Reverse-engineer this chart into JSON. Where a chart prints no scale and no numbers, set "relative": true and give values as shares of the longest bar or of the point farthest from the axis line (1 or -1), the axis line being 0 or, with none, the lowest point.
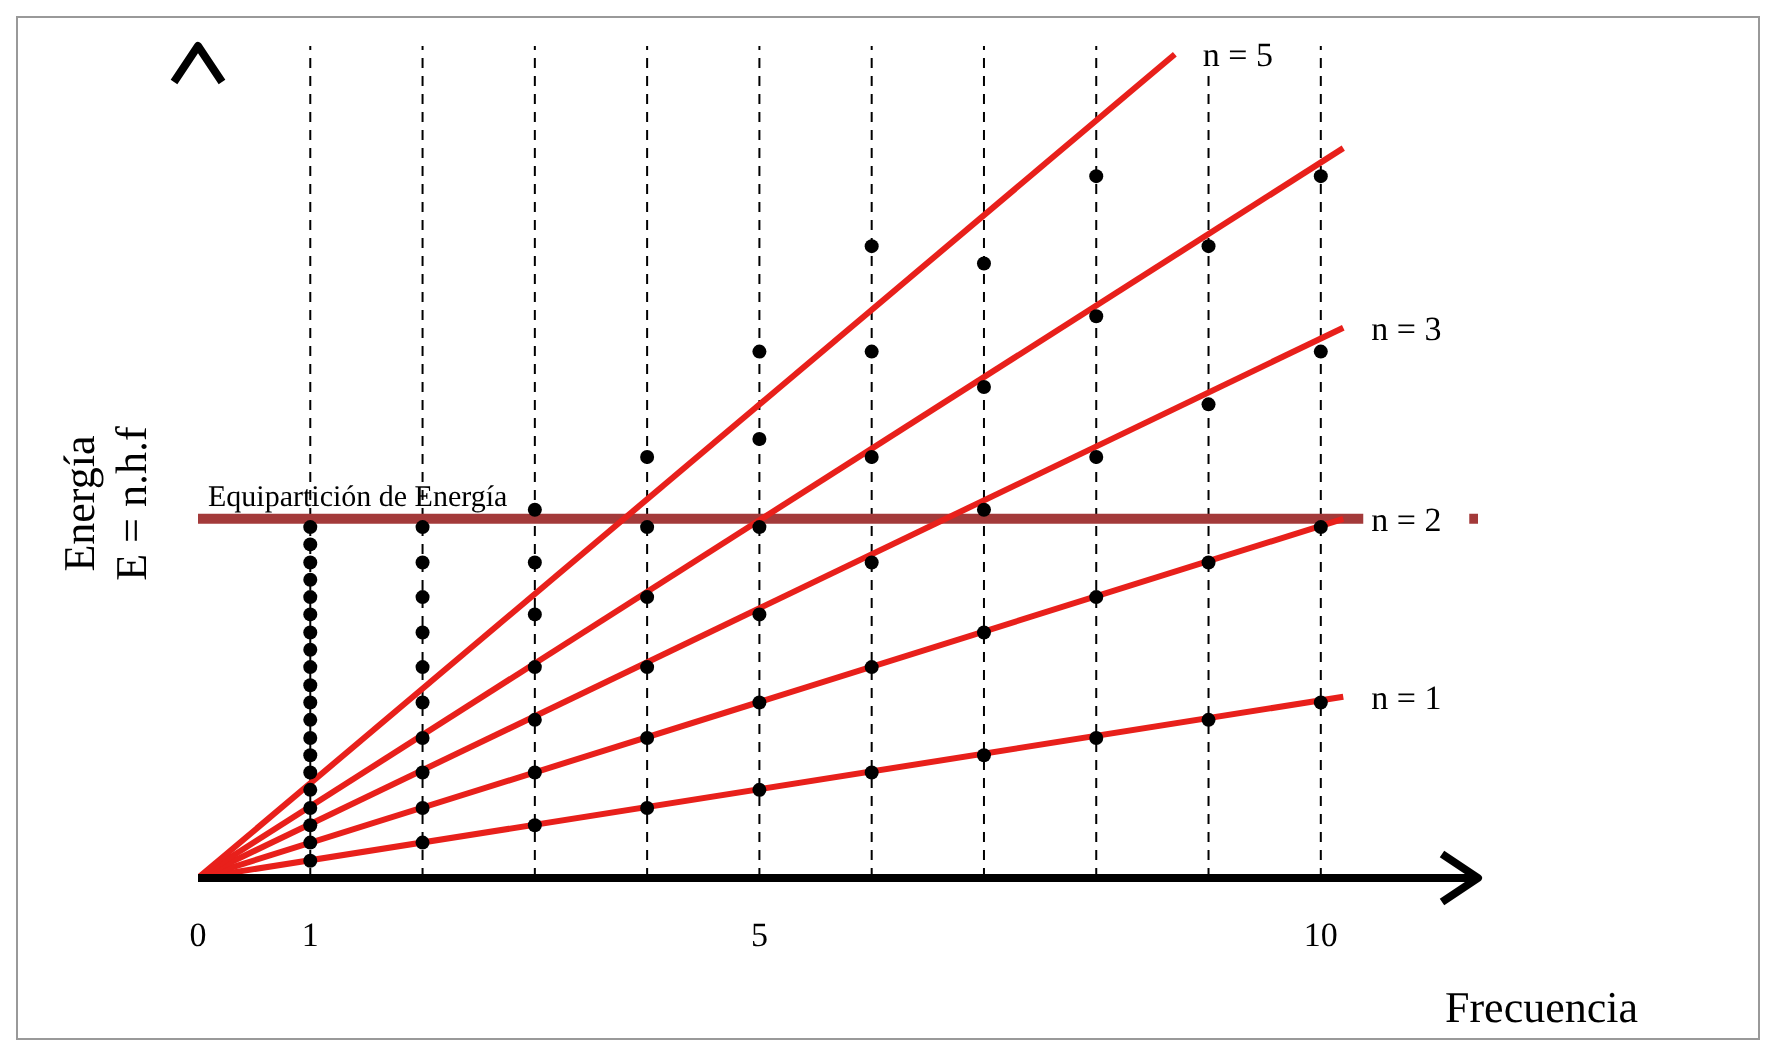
{
  "chart_data": {
    "type": "line",
    "relative": true,
    "xlabel": "Frecuencia",
    "ylabel": "Energía\nE = n.h.f",
    "xlim": [
      0,
      11.4
    ],
    "xticks": [
      0,
      1,
      5,
      10
    ],
    "legend": false,
    "series": [
      {
        "name": "n = 1",
        "color": "#e8201b",
        "x": [
          0,
          10.2
        ],
        "values": [
          0,
          0.22
        ]
      },
      {
        "name": "n = 2",
        "color": "#e8201b",
        "x": [
          0,
          10.2
        ],
        "values": [
          0,
          0.436
        ]
      },
      {
        "name": "n = 3",
        "color": "#e8201b",
        "x": [
          0,
          10.2
        ],
        "values": [
          0,
          0.668
        ]
      },
      {
        "color": "#e8201b",
        "x": [
          0,
          10.2
        ],
        "values": [
          0,
          0.886
        ]
      },
      {
        "name": "n = 5",
        "color": "#e8201b",
        "x": [
          0,
          8.7
        ],
        "values": [
          0,
          1
        ]
      },
      {
        "type": "scatter",
        "color": "#000000",
        "x": [
          1,
          1,
          1,
          1,
          1,
          1,
          1,
          1,
          1,
          1,
          1,
          1,
          1,
          1,
          1,
          1,
          1,
          1,
          1,
          1,
          2,
          2,
          2,
          2,
          2,
          2,
          2,
          2,
          2,
          2,
          3,
          3,
          3,
          3,
          3,
          3,
          3,
          4,
          4,
          4,
          4,
          4,
          4,
          5,
          5,
          5,
          5,
          5,
          5,
          6,
          6,
          6,
          6,
          6,
          6,
          7,
          7,
          7,
          7,
          7,
          8,
          8,
          8,
          8,
          8,
          9,
          9,
          9,
          9,
          10,
          10,
          10,
          10
        ],
        "values": [
          0.021,
          0.043,
          0.064,
          0.085,
          0.107,
          0.128,
          0.149,
          0.17,
          0.192,
          0.213,
          0.234,
          0.256,
          0.277,
          0.298,
          0.32,
          0.341,
          0.362,
          0.383,
          0.405,
          0.426,
          0.043,
          0.085,
          0.128,
          0.17,
          0.213,
          0.256,
          0.298,
          0.341,
          0.383,
          0.426,
          0.064,
          0.128,
          0.192,
          0.256,
          0.32,
          0.383,
          0.447,
          0.085,
          0.17,
          0.256,
          0.341,
          0.426,
          0.511,
          0.107,
          0.213,
          0.32,
          0.426,
          0.533,
          0.639,
          0.128,
          0.256,
          0.383,
          0.511,
          0.639,
          0.767,
          0.149,
          0.298,
          0.447,
          0.596,
          0.746,
          0.17,
          0.341,
          0.511,
          0.682,
          0.852,
          0.192,
          0.383,
          0.575,
          0.767,
          0.213,
          0.426,
          0.639,
          0.852
        ]
      }
    ],
    "ref_lines": [
      {
        "axis": "x",
        "value": 1,
        "color": "#000000",
        "line_style": "dashed"
      },
      {
        "axis": "x",
        "value": 2,
        "color": "#000000",
        "line_style": "dashed"
      },
      {
        "axis": "x",
        "value": 3,
        "color": "#000000",
        "line_style": "dashed"
      },
      {
        "axis": "x",
        "value": 4,
        "color": "#000000",
        "line_style": "dashed"
      },
      {
        "axis": "x",
        "value": 5,
        "color": "#000000",
        "line_style": "dashed"
      },
      {
        "axis": "x",
        "value": 6,
        "color": "#000000",
        "line_style": "dashed"
      },
      {
        "axis": "x",
        "value": 7,
        "color": "#000000",
        "line_style": "dashed"
      },
      {
        "axis": "x",
        "value": 8,
        "color": "#000000",
        "line_style": "dashed"
      },
      {
        "axis": "x",
        "value": 9,
        "color": "#000000",
        "line_style": "dashed"
      },
      {
        "axis": "x",
        "value": 10,
        "color": "#000000",
        "line_style": "dashed"
      },
      {
        "axis": "y",
        "value": 0.436,
        "label": "Equipartición de Energía",
        "color": "#a33a3a",
        "line_style": "solid"
      }
    ]
  }
}
